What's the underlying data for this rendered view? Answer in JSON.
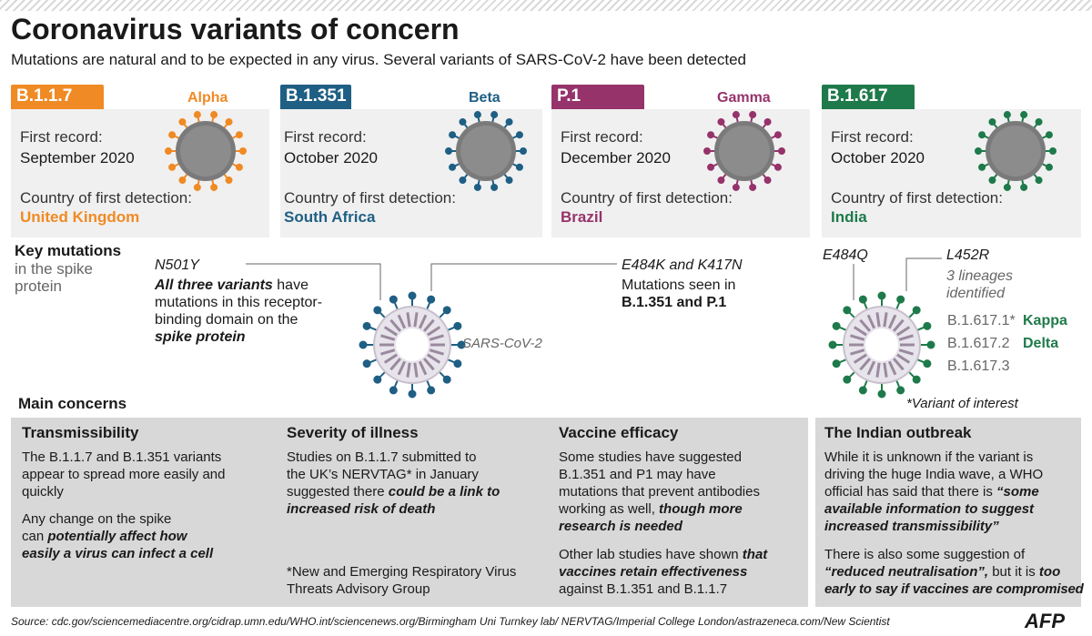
{
  "header": {
    "title": "Coronavirus variants of concern",
    "subtitle": "Mutations are natural and to be expected in any virus. Several variants of SARS-CoV-2 have been detected"
  },
  "labels": {
    "first_record": "First record:",
    "country_first_detection": "Country of first detection:"
  },
  "variants": [
    {
      "lineage": "B.1.1.7",
      "greek": "Alpha",
      "first_record": "September 2020",
      "country": "United Kingdom",
      "color": "#f08a24"
    },
    {
      "lineage": "B.1.351",
      "greek": "Beta",
      "first_record": "October 2020",
      "country": "South Africa",
      "color": "#1f5f84"
    },
    {
      "lineage": "P.1",
      "greek": "Gamma",
      "first_record": "December 2020",
      "country": "Brazil",
      "color": "#96336b"
    },
    {
      "lineage": "B.1.617",
      "greek": "",
      "first_record": "October 2020",
      "country": "India",
      "color": "#1e7a4a"
    }
  ],
  "mutations": {
    "heading": "Key mutations",
    "heading_sub_1": "in the spike",
    "heading_sub_2": "protein",
    "n501y_label": "N501Y",
    "n501y_text_1_bold": "All three variants",
    "n501y_text_1_rest": " have",
    "n501y_text_2": "mutations in this receptor-",
    "n501y_text_3": "binding domain on the",
    "n501y_text_4": "spike protein",
    "e484k_label": "E484K and K417N",
    "e484k_text_1": "Mutations seen in",
    "e484k_text_2": "B.1.351 and P.1",
    "sars_label": "SARS-CoV-2",
    "e484q_label": "E484Q",
    "l452r_label": "L452R",
    "lineages_1": "3 lineages",
    "lineages_2": "identified",
    "sub_1": "B.1.617.1*",
    "sub_1_name": "Kappa",
    "sub_2": "B.1.617.2",
    "sub_2_name": "Delta",
    "sub_3": "B.1.617.3",
    "voi_note": "*Variant of interest"
  },
  "concerns": {
    "heading": "Main concerns",
    "transmissibility": {
      "title": "Transmissibility",
      "p1_l1": "The B.1.1.7 and B.1.351 variants",
      "p1_l2": "appear to spread more easily and",
      "p1_l3": "quickly",
      "p2_l1": "Any change on the spike",
      "p2_l2_a": "can ",
      "p2_l2_b": "potentially affect how",
      "p2_l3": "easily a virus can infect a cell"
    },
    "severity": {
      "title": "Severity of illness",
      "l1": "Studies on B.1.1.7 submitted to",
      "l2": "the UK’s NERVTAG* in January",
      "l3_a": "suggested there ",
      "l3_b": "could be a link to",
      "l4": "increased risk of death",
      "note_1": "*New and Emerging Respiratory Virus",
      "note_2": "Threats Advisory Group"
    },
    "vaccine": {
      "title": "Vaccine efficacy",
      "l1": "Some studies have suggested",
      "l2": "B.1.351 and P1 may have",
      "l3": "mutations that prevent antibodies",
      "l4_a": "working as well, ",
      "l4_b": "though more",
      "l5": "research is needed",
      "p2_l1_a": "Other lab studies have shown ",
      "p2_l1_b": "that",
      "p2_l2": "vaccines retain effectiveness",
      "p2_l3": "against B.1.351 and B.1.1.7"
    },
    "india": {
      "title": "The Indian outbreak",
      "l1": "While it is unknown if the variant is",
      "l2": "driving the huge India wave, a WHO",
      "l3_a": "official has said that there is ",
      "l3_b": "“some",
      "l4": "available information to suggest",
      "l5": "increased transmissibility”",
      "p2_l1": "There is also some suggestion of",
      "p2_l2_a": "“reduced neutralisation”,",
      "p2_l2_b": " but it is ",
      "p2_l2_c": "too",
      "p2_l3": "early to say if vaccines are compromised"
    }
  },
  "footer": {
    "source": "Source: cdc.gov/sciencemediacentre.org/cidrap.umn.edu/WHO.int/sciencenews.org/Birmingham Uni Turnkey lab/ NERVTAG/Imperial College London/astrazeneca.com/New Scientist",
    "logo": "AFP"
  }
}
